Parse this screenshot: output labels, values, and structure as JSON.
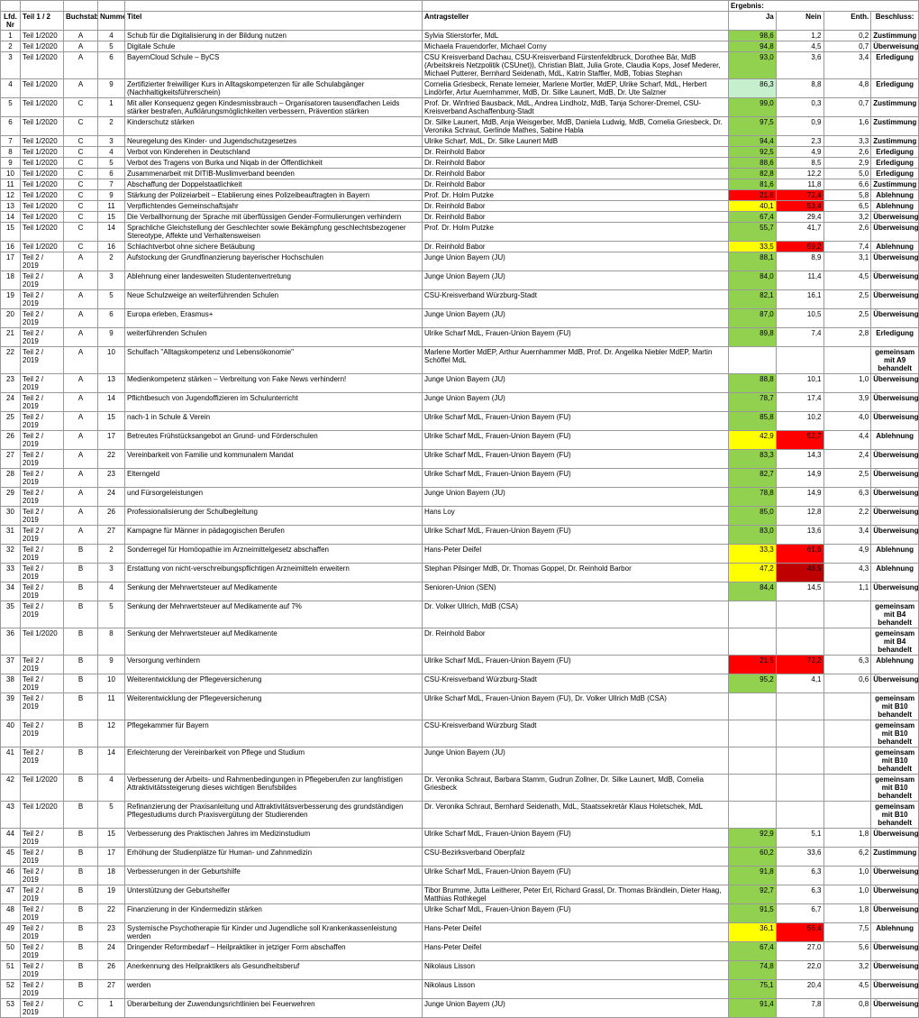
{
  "headers": {
    "nr": "Lfd. Nr",
    "teil": "Teil 1 / 2",
    "buch": "Buchstabe",
    "num": "Nummer",
    "titel": "Titel",
    "antrag": "Antragsteller",
    "ergebnis": "Ergebnis:",
    "ja": "Ja",
    "nein": "Nein",
    "enth": "Enth.",
    "besch": "Beschluss:"
  },
  "colors": {
    "green": "#92d050",
    "lightgreen": "#c6efce",
    "red": "#ff0000",
    "darkred": "#c00000",
    "yellow": "#ffff00"
  },
  "rows": [
    {
      "nr": "1",
      "teil": "Teil 1/2020",
      "buch": "A",
      "num": "4",
      "titel": "Schub für die Digitalisierung in der Bildung nutzen",
      "antrag": "Sylvia Stierstorfer, MdL",
      "ja": "98,6",
      "nein": "1,2",
      "enth": "0,2",
      "besch": "Zustimmung",
      "jac": "green"
    },
    {
      "nr": "2",
      "teil": "Teil 1/2020",
      "buch": "A",
      "num": "5",
      "titel": "Digitale Schule",
      "antrag": "Michaela Frauendorfer, Michael Corny",
      "ja": "94,8",
      "nein": "4,5",
      "enth": "0,7",
      "besch": "Überweisung",
      "jac": "green"
    },
    {
      "nr": "3",
      "teil": "Teil 1/2020",
      "buch": "A",
      "num": "6",
      "titel": "BayernCloud Schule  – ByCS",
      "antrag": "CSU Kreisverband Dachau, CSU-Kreisverband Fürstenfeldbruck, Dorothee Bär, MdB (Arbeitskreis Netzpolitik (CSUnet)), Christian Blatt, Julia Grote, Claudia Kops, Josef Mederer, Michael Putterer, Bernhard Seidenath, MdL, Katrin Staffler, MdB, Tobias Stephan",
      "ja": "93,0",
      "nein": "3,6",
      "enth": "3,4",
      "besch": "Erledigung",
      "jac": "green"
    },
    {
      "nr": "4",
      "teil": "Teil 1/2020",
      "buch": "A",
      "num": "9",
      "titel": "Zertifizierter freiwilliger Kurs in Alltagskompetenzen für alle Schulabgänger (Nachhaltigkeitsführerschein)",
      "antrag": "Cornelia Griesbeck, Renate Iemeier, Marlene Mortler, MdEP, Ulrike Scharf, MdL, Herbert Lindörfer, Artur Auernhammer, MdB, Dr. Silke Launert, MdB, Dr. Ute Salzner",
      "ja": "86,3",
      "nein": "8,8",
      "enth": "4,8",
      "besch": "Erledigung",
      "jac": "lightgreen"
    },
    {
      "nr": "5",
      "teil": "Teil 1/2020",
      "buch": "C",
      "num": "1",
      "titel": "Mit aller Konsequenz gegen Kindesmissbrauch – Organisatoren tausendfachen Leids stärker bestrafen, Aufklärungsmöglichkeiten verbessern, Prävention stärken",
      "antrag": "Prof. Dr. Winfried Bausback, MdL, Andrea Lindholz, MdB, Tanja Schorer-Dremel, CSU-Kreisverband Aschaffenburg-Stadt",
      "ja": "99,0",
      "nein": "0,3",
      "enth": "0,7",
      "besch": "Zustimmung",
      "jac": "green"
    },
    {
      "nr": "6",
      "teil": "Teil 1/2020",
      "buch": "C",
      "num": "2",
      "titel": "Kinderschutz stärken",
      "antrag": "Dr. Silke Launert, MdB, Anja Weisgerber, MdB, Daniela Ludwig, MdB, Cornelia Griesbeck, Dr. Veronika Schraut, Gerlinde Mathes, Sabine Habla",
      "ja": "97,5",
      "nein": "0,9",
      "enth": "1,6",
      "besch": "Zustimmung",
      "jac": "green"
    },
    {
      "nr": "7",
      "teil": "Teil 1/2020",
      "buch": "C",
      "num": "3",
      "titel": "Neuregelung des Kinder- und Jugendschutzgesetzes",
      "antrag": "Ulrike Scharf, MdL, Dr. Silke Launert MdB",
      "ja": "94,4",
      "nein": "2,3",
      "enth": "3,3",
      "besch": "Zustimmung",
      "jac": "green"
    },
    {
      "nr": "8",
      "teil": "Teil 1/2020",
      "buch": "C",
      "num": "4",
      "titel": "Verbot von Kinderehen in Deutschland",
      "antrag": "Dr. Reinhold Babor",
      "ja": "92,5",
      "nein": "4,9",
      "enth": "2,6",
      "besch": "Erledigung",
      "jac": "green"
    },
    {
      "nr": "9",
      "teil": "Teil 1/2020",
      "buch": "C",
      "num": "5",
      "titel": "Verbot des Tragens von Burka und Niqab in der Öffentlichkeit",
      "antrag": "Dr. Reinhold Babor",
      "ja": "88,6",
      "nein": "8,5",
      "enth": "2,9",
      "besch": "Erledigung",
      "jac": "green"
    },
    {
      "nr": "10",
      "teil": "Teil 1/2020",
      "buch": "C",
      "num": "6",
      "titel": "Zusammenarbeit mit DITIB-Muslimverband beenden",
      "antrag": "Dr. Reinhold Babor",
      "ja": "82,8",
      "nein": "12,2",
      "enth": "5,0",
      "besch": "Erledigung",
      "jac": "green"
    },
    {
      "nr": "11",
      "teil": "Teil 1/2020",
      "buch": "C",
      "num": "7",
      "titel": "Abschaffung der Doppelstaatlichkeit",
      "antrag": "Dr. Reinhold Babor",
      "ja": "81,6",
      "nein": "11,8",
      "enth": "6,6",
      "besch": "Zustimmung",
      "jac": "green"
    },
    {
      "nr": "12",
      "teil": "Teil 1/2020",
      "buch": "C",
      "num": "9",
      "titel": "Stärkung der Polizeiarbeit – Etablierung eines Polizeibeauftragten in Bayern",
      "antrag": "Prof. Dr. Holm Putzke",
      "ja": "21,8",
      "nein": "72,4",
      "enth": "5,8",
      "besch": "Ablehnung",
      "jac": "red",
      "nc": "red"
    },
    {
      "nr": "13",
      "teil": "Teil 1/2020",
      "buch": "C",
      "num": "11",
      "titel": "Verpflichtendes Gemeinschaftsjahr",
      "antrag": "Dr. Reinhold Babor",
      "ja": "40,1",
      "nein": "53,4",
      "enth": "6,5",
      "besch": "Ablehnung",
      "jac": "yellow",
      "nc": "red"
    },
    {
      "nr": "14",
      "teil": "Teil 1/2020",
      "buch": "C",
      "num": "15",
      "titel": "Die Verballhornung der Sprache mit überflüssigen Gender-Formulierungen verhindern",
      "antrag": "Dr. Reinhold Babor",
      "ja": "67,4",
      "nein": "29,4",
      "enth": "3,2",
      "besch": "Überweisung",
      "jac": "green"
    },
    {
      "nr": "15",
      "teil": "Teil 1/2020",
      "buch": "C",
      "num": "14",
      "titel": "Sprachliche Gleichstellung der Geschlechter sowie Bekämpfung geschlechtsbezogener Stereotype, Affekte und Verhaltensweisen",
      "antrag": "Prof. Dr. Holm Putzke",
      "ja": "55,7",
      "nein": "41,7",
      "enth": "2,6",
      "besch": "Überweisung",
      "jac": "green"
    },
    {
      "nr": "16",
      "teil": "Teil 1/2020",
      "buch": "C",
      "num": "16",
      "titel": "Schlachtverbot ohne sichere Betäubung",
      "antrag": "Dr. Reinhold Babor",
      "ja": "33,5",
      "nein": "59,2",
      "enth": "7,4",
      "besch": "Ablehnung",
      "jac": "yellow",
      "nc": "red"
    },
    {
      "nr": "17",
      "teil": "Teil 2 / 2019",
      "buch": "A",
      "num": "2",
      "titel": "Aufstockung der Grundfinanzierung bayerischer Hochschulen",
      "antrag": "Junge Union Bayern (JU)",
      "ja": "88,1",
      "nein": "8,9",
      "enth": "3,1",
      "besch": "Überweisung",
      "jac": "green"
    },
    {
      "nr": "18",
      "teil": "Teil 2 / 2019",
      "buch": "A",
      "num": "3",
      "titel": "Ablehnung einer landesweiten Studentenvertretung",
      "antrag": "Junge Union Bayern (JU)",
      "ja": "84,0",
      "nein": "11,4",
      "enth": "4,5",
      "besch": "Überweisung",
      "jac": "green"
    },
    {
      "nr": "19",
      "teil": "Teil 2 / 2019",
      "buch": "A",
      "num": "5",
      "titel": "Neue Schulzweige an weiterführenden Schulen",
      "antrag": "CSU-Kreisverband Würzburg-Stadt",
      "ja": "82,1",
      "nein": "16,1",
      "enth": "2,5",
      "besch": "Überweisung",
      "jac": "green"
    },
    {
      "nr": "20",
      "teil": "Teil 2 / 2019",
      "buch": "A",
      "num": "6",
      "titel": "Europa erleben, Erasmus+",
      "antrag": "Junge Union Bayern (JU)",
      "ja": "87,0",
      "nein": "10,5",
      "enth": "2,5",
      "besch": "Überweisung",
      "jac": "green"
    },
    {
      "nr": "21",
      "teil": "Teil 2 / 2019",
      "buch": "A",
      "num": "9",
      "titel": "weiterführenden Schulen",
      "antrag": "Ulrike Scharf MdL, Frauen-Union Bayern (FU)",
      "ja": "89,8",
      "nein": "7,4",
      "enth": "2,8",
      "besch": "Erledigung",
      "jac": "green"
    },
    {
      "nr": "22",
      "teil": "Teil 2 / 2019",
      "buch": "A",
      "num": "10",
      "titel": "Schulfach \"Alltagskompetenz und Lebensökonomie\"",
      "antrag": "Marlene Mortler MdEP, Arthur Auernhammer MdB, Prof. Dr. Angelika Niebler MdEP, Martin Schöffel MdL",
      "ja": "",
      "nein": "",
      "enth": "",
      "besch": "gemeinsam mit A9 behandelt"
    },
    {
      "nr": "23",
      "teil": "Teil 2 / 2019",
      "buch": "A",
      "num": "13",
      "titel": "Medienkompetenz stärken – Verbreitung von Fake News verhindern!",
      "antrag": "Junge Union Bayern (JU)",
      "ja": "88,8",
      "nein": "10,1",
      "enth": "1,0",
      "besch": "Überweisung",
      "jac": "green"
    },
    {
      "nr": "24",
      "teil": "Teil 2 / 2019",
      "buch": "A",
      "num": "14",
      "titel": "Pflichtbesuch von Jugendoffizieren im Schulunterricht",
      "antrag": "Junge Union Bayern (JU)",
      "ja": "78,7",
      "nein": "17,4",
      "enth": "3,9",
      "besch": "Überweisung",
      "jac": "green"
    },
    {
      "nr": "25",
      "teil": "Teil 2 / 2019",
      "buch": "A",
      "num": "15",
      "titel": "nach-1 in Schule & Verein",
      "antrag": "Ulrike Scharf MdL, Frauen-Union Bayern (FU)",
      "ja": "85,8",
      "nein": "10,2",
      "enth": "4,0",
      "besch": "Überweisung",
      "jac": "green"
    },
    {
      "nr": "26",
      "teil": "Teil 2 / 2019",
      "buch": "A",
      "num": "17",
      "titel": "Betreutes Frühstücksangebot an Grund- und Förderschulen",
      "antrag": "Ulrike Scharf MdL, Frauen-Union Bayern (FU)",
      "ja": "42,9",
      "nein": "52,7",
      "enth": "4,4",
      "besch": "Ablehnung",
      "jac": "yellow",
      "nc": "red"
    },
    {
      "nr": "27",
      "teil": "Teil 2 / 2019",
      "buch": "A",
      "num": "22",
      "titel": "Vereinbarkeit von Familie und kommunalem Mandat",
      "antrag": "Ulrike Scharf MdL, Frauen-Union Bayern (FU)",
      "ja": "83,3",
      "nein": "14,3",
      "enth": "2,4",
      "besch": "Überweisung",
      "jac": "green"
    },
    {
      "nr": "28",
      "teil": "Teil 2 / 2019",
      "buch": "A",
      "num": "23",
      "titel": "Elterngeld",
      "antrag": "Ulrike Scharf MdL, Frauen-Union Bayern (FU)",
      "ja": "82,7",
      "nein": "14,9",
      "enth": "2,5",
      "besch": "Überweisung",
      "jac": "green"
    },
    {
      "nr": "29",
      "teil": "Teil 2 / 2019",
      "buch": "A",
      "num": "24",
      "titel": "und Fürsorgeleistungen",
      "antrag": "Junge Union Bayern (JU)",
      "ja": "78,8",
      "nein": "14,9",
      "enth": "6,3",
      "besch": "Überweisung",
      "jac": "green"
    },
    {
      "nr": "30",
      "teil": "Teil 2 / 2019",
      "buch": "A",
      "num": "26",
      "titel": "Professionalisierung der Schulbegleitung",
      "antrag": "Hans Loy",
      "ja": "85,0",
      "nein": "12,8",
      "enth": "2,2",
      "besch": "Überweisung",
      "jac": "green"
    },
    {
      "nr": "31",
      "teil": "Teil 2 / 2019",
      "buch": "A",
      "num": "27",
      "titel": "Kampagne für Männer in pädagogischen Berufen",
      "antrag": "Ulrike Scharf MdL, Frauen-Union Bayern (FU)",
      "ja": "83,0",
      "nein": "13,6",
      "enth": "3,4",
      "besch": "Überweisung",
      "jac": "green"
    },
    {
      "nr": "32",
      "teil": "Teil 2 / 2019",
      "buch": "B",
      "num": "2",
      "titel": "Sonderregel für Homöopathie im Arzneimittelgesetz abschaffen",
      "antrag": "Hans-Peter Deifel",
      "ja": "33,3",
      "nein": "61,6",
      "enth": "4,9",
      "besch": "Ablehnung",
      "jac": "yellow",
      "nc": "red"
    },
    {
      "nr": "33",
      "teil": "Teil 2 / 2019",
      "buch": "B",
      "num": "3",
      "titel": "Erstattung von nicht-verschreibungspflichtigen Arzneimitteln erweitern",
      "antrag": "Stephan Pilsinger MdB, Dr. Thomas Goppel, Dr. Reinhold Barbor",
      "ja": "47,2",
      "nein": "48,5",
      "enth": "4,3",
      "besch": "Ablehnung",
      "jac": "yellow",
      "nc": "darkred"
    },
    {
      "nr": "34",
      "teil": "Teil 2 / 2019",
      "buch": "B",
      "num": "4",
      "titel": "Senkung der Mehrwertsteuer auf Medikamente",
      "antrag": "Senioren-Union (SEN)",
      "ja": "84,4",
      "nein": "14,5",
      "enth": "1,1",
      "besch": "Überweisung",
      "jac": "green"
    },
    {
      "nr": "35",
      "teil": "Teil 2 / 2019",
      "buch": "B",
      "num": "5",
      "titel": "Senkung der Mehrwertsteuer auf Medikamente auf 7%",
      "antrag": "Dr. Volker Ullrich, MdB (CSA)",
      "ja": "",
      "nein": "",
      "enth": "",
      "besch": "gemeinsam mit B4 behandelt"
    },
    {
      "nr": "36",
      "teil": "Teil 1/2020",
      "buch": "B",
      "num": "8",
      "titel": "Senkung der Mehrwertsteuer auf Medikamente",
      "antrag": "Dr. Reinhold Babor",
      "ja": "",
      "nein": "",
      "enth": "",
      "besch": "gemeinsam mit B4 behandelt"
    },
    {
      "nr": "37",
      "teil": "Teil 2 / 2019",
      "buch": "B",
      "num": "9",
      "titel": "Versorgung verhindern",
      "antrag": "Ulrike Scharf MdL, Frauen-Union Bayern (FU)",
      "ja": "21,5",
      "nein": "72,2",
      "enth": "6,3",
      "besch": "Ablehnung",
      "jac": "red",
      "nc": "red"
    },
    {
      "nr": "38",
      "teil": "Teil 2 / 2019",
      "buch": "B",
      "num": "10",
      "titel": "Weiterentwicklung der Pflegeversicherung",
      "antrag": "CSU-Kreisverband Würzburg-Stadt",
      "ja": "95,2",
      "nein": "4,1",
      "enth": "0,6",
      "besch": "Überweisung",
      "jac": "green"
    },
    {
      "nr": "39",
      "teil": "Teil 2 / 2019",
      "buch": "B",
      "num": "11",
      "titel": "Weiterentwicklung der Pflegeversicherung",
      "antrag": "Ulrike Scharf MdL, Frauen-Union Bayern (FU), Dr. Volker Ullrich MdB (CSA)",
      "ja": "",
      "nein": "",
      "enth": "",
      "besch": "gemeinsam mit B10 behandelt"
    },
    {
      "nr": "40",
      "teil": "Teil 2 / 2019",
      "buch": "B",
      "num": "12",
      "titel": "Pflegekammer für Bayern",
      "antrag": "CSU-Kreisverband Würzburg Stadt",
      "ja": "",
      "nein": "",
      "enth": "",
      "besch": "gemeinsam mit B10 behandelt"
    },
    {
      "nr": "41",
      "teil": "Teil 2 / 2019",
      "buch": "B",
      "num": "14",
      "titel": "Erleichterung der Vereinbarkeit von Pflege und Studium",
      "antrag": "Junge Union Bayern (JU)",
      "ja": "",
      "nein": "",
      "enth": "",
      "besch": "gemeinsam mit B10 behandelt"
    },
    {
      "nr": "42",
      "teil": "Teil 1/2020",
      "buch": "B",
      "num": "4",
      "titel": "Verbesserung der Arbeits- und Rahmenbedingungen in Pflegeberufen zur langfristigen Attraktivitätssteigerung dieses wichtigen Berufsbildes",
      "antrag": "Dr. Veronika Schraut, Barbara Stamm, Gudrun Zollner, Dr. Silke Launert, MdB, Cornelia Griesbeck",
      "ja": "",
      "nein": "",
      "enth": "",
      "besch": "gemeinsam mit B10 behandelt"
    },
    {
      "nr": "43",
      "teil": "Teil 1/2020",
      "buch": "B",
      "num": "5",
      "titel": "Refinanzierung der Praxisanleitung und Attraktivitätsverbesserung des grundständigen Pflegestudiums durch Praxisvergütung der Studierenden",
      "antrag": "Dr. Veronika Schraut, Bernhard Seidenath, MdL, Staatssekretär Klaus Holetschek, MdL",
      "ja": "",
      "nein": "",
      "enth": "",
      "besch": "gemeinsam mit B10 behandelt"
    },
    {
      "nr": "44",
      "teil": "Teil 2 / 2019",
      "buch": "B",
      "num": "15",
      "titel": "Verbesserung des Praktischen Jahres im Medizinstudium",
      "antrag": "Ulrike Scharf MdL, Frauen-Union Bayern (FU)",
      "ja": "92,9",
      "nein": "5,1",
      "enth": "1,8",
      "besch": "Überweisung",
      "jac": "green"
    },
    {
      "nr": "45",
      "teil": "Teil 2 / 2019",
      "buch": "B",
      "num": "17",
      "titel": "Erhöhung der Studienplätze für Human- und Zahnmedizin",
      "antrag": "CSU-Bezirksverband Oberpfalz",
      "ja": "60,2",
      "nein": "33,6",
      "enth": "6,2",
      "besch": "Zustimmung",
      "jac": "green"
    },
    {
      "nr": "46",
      "teil": "Teil 2 / 2019",
      "buch": "B",
      "num": "18",
      "titel": "Verbesserungen in der Geburtshilfe",
      "antrag": "Ulrike Scharf MdL, Frauen-Union Bayern (FU)",
      "ja": "91,8",
      "nein": "6,3",
      "enth": "1,0",
      "besch": "Überweisung",
      "jac": "green"
    },
    {
      "nr": "47",
      "teil": "Teil 2 / 2019",
      "buch": "B",
      "num": "19",
      "titel": "Unterstützung der Geburtshelfer",
      "antrag": "Tibor Brumme, Jutta Leitherer, Peter Erl, Richard Grassl, Dr. Thomas Brändlein, Dieter Haag, Matthias Rothkegel",
      "ja": "92,7",
      "nein": "6,3",
      "enth": "1,0",
      "besch": "Überweisung",
      "jac": "green"
    },
    {
      "nr": "48",
      "teil": "Teil 2 / 2019",
      "buch": "B",
      "num": "22",
      "titel": "Finanzierung in der Kindermedizin stärken",
      "antrag": "Ulrike Scharf MdL, Frauen-Union Bayern (FU)",
      "ja": "91,5",
      "nein": "6,7",
      "enth": "1,8",
      "besch": "Überweisung",
      "jac": "green"
    },
    {
      "nr": "49",
      "teil": "Teil 2 / 2019",
      "buch": "B",
      "num": "23",
      "titel": "Systemische Psychotherapie für Kinder und Jugendliche soll Krankenkassenleistung werden",
      "antrag": "Hans-Peter Deifel",
      "ja": "36,1",
      "nein": "56,4",
      "enth": "7,5",
      "besch": "Ablehnung",
      "jac": "yellow",
      "nc": "red"
    },
    {
      "nr": "50",
      "teil": "Teil 2 / 2019",
      "buch": "B",
      "num": "24",
      "titel": "Dringender Reformbedarf – Heilpraktiker in jetziger Form abschaffen",
      "antrag": "Hans-Peter Deifel",
      "ja": "67,4",
      "nein": "27,0",
      "enth": "5,6",
      "besch": "Überweisung",
      "jac": "green"
    },
    {
      "nr": "51",
      "teil": "Teil 2 / 2019",
      "buch": "B",
      "num": "26",
      "titel": "Anerkennung des Heilpraktikers als Gesundheitsberuf",
      "antrag": "Nikolaus Lisson",
      "ja": "74,8",
      "nein": "22,0",
      "enth": "3,2",
      "besch": "Überweisung",
      "jac": "green"
    },
    {
      "nr": "52",
      "teil": "Teil 2 / 2019",
      "buch": "B",
      "num": "27",
      "titel": "werden",
      "antrag": "Nikolaus Lisson",
      "ja": "75,1",
      "nein": "20,4",
      "enth": "4,5",
      "besch": "Überweisung",
      "jac": "green"
    },
    {
      "nr": "53",
      "teil": "Teil 2 / 2019",
      "buch": "C",
      "num": "1",
      "titel": "Überarbeitung der Zuwendungsrichtlinien bei Feuerwehren",
      "antrag": "Junge Union Bayern (JU)",
      "ja": "91,4",
      "nein": "7,8",
      "enth": "0,8",
      "besch": "Überweisung",
      "jac": "green"
    }
  ]
}
